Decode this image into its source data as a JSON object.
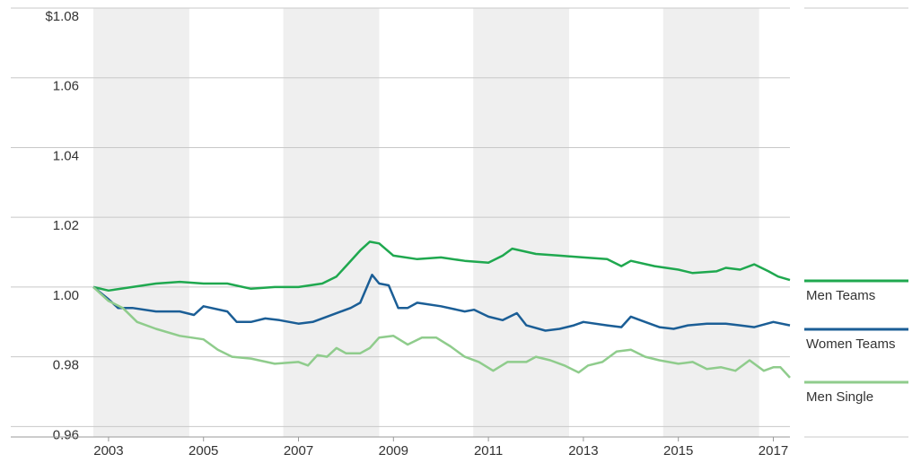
{
  "chart_data": {
    "type": "line",
    "xlim": [
      2002.68,
      2017.35
    ],
    "xticks": [
      2003,
      2005,
      2007,
      2009,
      2011,
      2013,
      2015,
      2017
    ],
    "ylim": [
      0.957,
      1.08
    ],
    "yticks": [
      {
        "value": 1.08,
        "label": "$1.08"
      },
      1.06,
      1.04,
      1.02,
      {
        "value": 1.0,
        "label": "1.00"
      },
      0.98,
      0.96
    ],
    "grid": true,
    "series": [
      {
        "name": "Men Teams",
        "color": "#1fa84f",
        "x": [
          2002.68,
          2003,
          2003.5,
          2004,
          2004.5,
          2005,
          2005.5,
          2006,
          2006.5,
          2007,
          2007.5,
          2007.8,
          2008,
          2008.3,
          2008.5,
          2008.7,
          2009,
          2009.5,
          2010,
          2010.5,
          2011,
          2011.3,
          2011.5,
          2012,
          2012.5,
          2013,
          2013.5,
          2013.8,
          2014,
          2014.5,
          2015,
          2015.3,
          2015.8,
          2016,
          2016.3,
          2016.6,
          2016.9,
          2017.1,
          2017.35
        ],
        "values": [
          1.0,
          0.999,
          1.0,
          1.001,
          1.0015,
          1.001,
          1.001,
          0.9995,
          1.0,
          1.0,
          1.001,
          1.003,
          1.006,
          1.0105,
          1.013,
          1.0125,
          1.009,
          1.008,
          1.0085,
          1.0075,
          1.007,
          1.009,
          1.011,
          1.0095,
          1.009,
          1.0085,
          1.008,
          1.006,
          1.0075,
          1.006,
          1.005,
          1.004,
          1.0045,
          1.0055,
          1.005,
          1.0065,
          1.0045,
          1.003,
          1.002
        ]
      },
      {
        "name": "Women Teams",
        "color": "#1b5e96",
        "x": [
          2002.68,
          2003,
          2003.2,
          2003.5,
          2004,
          2004.5,
          2004.8,
          2005,
          2005.5,
          2005.7,
          2006,
          2006.3,
          2006.6,
          2007,
          2007.3,
          2007.6,
          2007.9,
          2008.1,
          2008.3,
          2008.55,
          2008.7,
          2008.9,
          2009.1,
          2009.3,
          2009.5,
          2010,
          2010.5,
          2010.7,
          2011,
          2011.3,
          2011.6,
          2011.8,
          2012.2,
          2012.5,
          2012.8,
          2013,
          2013.5,
          2013.8,
          2014,
          2014.3,
          2014.6,
          2014.9,
          2015.2,
          2015.6,
          2016,
          2016.3,
          2016.6,
          2017,
          2017.35
        ],
        "values": [
          1.0,
          0.9965,
          0.994,
          0.994,
          0.993,
          0.993,
          0.992,
          0.9945,
          0.993,
          0.99,
          0.99,
          0.991,
          0.9905,
          0.9895,
          0.99,
          0.9915,
          0.993,
          0.994,
          0.9955,
          1.0035,
          1.001,
          1.0005,
          0.994,
          0.994,
          0.9955,
          0.9945,
          0.993,
          0.9935,
          0.9915,
          0.9905,
          0.9925,
          0.989,
          0.9875,
          0.988,
          0.989,
          0.99,
          0.989,
          0.9885,
          0.9915,
          0.99,
          0.9885,
          0.988,
          0.989,
          0.9895,
          0.9895,
          0.989,
          0.9885,
          0.99,
          0.989
        ]
      },
      {
        "name": "Men Single",
        "color": "#8fcc8c",
        "x": [
          2002.68,
          2003,
          2003.3,
          2003.6,
          2004,
          2004.5,
          2005,
          2005.3,
          2005.6,
          2006,
          2006.5,
          2007,
          2007.2,
          2007.4,
          2007.6,
          2007.8,
          2008,
          2008.3,
          2008.5,
          2008.7,
          2009,
          2009.3,
          2009.6,
          2009.9,
          2010.2,
          2010.5,
          2010.8,
          2011.1,
          2011.4,
          2011.8,
          2012,
          2012.3,
          2012.6,
          2012.9,
          2013.1,
          2013.4,
          2013.7,
          2014,
          2014.3,
          2014.6,
          2015,
          2015.3,
          2015.6,
          2015.9,
          2016.2,
          2016.5,
          2016.8,
          2017,
          2017.15,
          2017.35
        ],
        "values": [
          1.0,
          0.996,
          0.994,
          0.99,
          0.988,
          0.986,
          0.985,
          0.982,
          0.98,
          0.9795,
          0.978,
          0.9785,
          0.9775,
          0.9805,
          0.98,
          0.9825,
          0.981,
          0.981,
          0.9825,
          0.9855,
          0.986,
          0.9835,
          0.9855,
          0.9855,
          0.983,
          0.98,
          0.9785,
          0.976,
          0.9785,
          0.9785,
          0.98,
          0.979,
          0.9775,
          0.9755,
          0.9775,
          0.9785,
          0.9815,
          0.982,
          0.98,
          0.979,
          0.978,
          0.9785,
          0.9765,
          0.977,
          0.976,
          0.979,
          0.976,
          0.977,
          0.977,
          0.974
        ]
      }
    ]
  }
}
